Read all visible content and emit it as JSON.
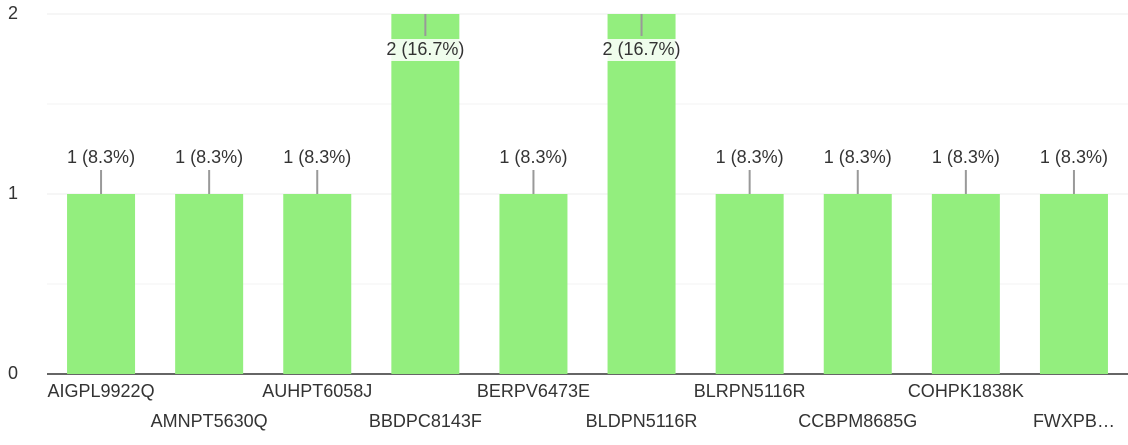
{
  "chart_data": {
    "type": "bar",
    "categories": [
      "AIGPL9922Q",
      "AMNPT5630Q",
      "AUHPT6058J",
      "BBDPC8143F",
      "BERPV6473E",
      "BLDPN5116R",
      "BLRPN5116R",
      "CCBPM8685G",
      "COHPK1838K",
      "FWXPB…"
    ],
    "values": [
      1,
      1,
      1,
      2,
      1,
      2,
      1,
      1,
      1,
      1
    ],
    "value_labels": [
      "1 (8.3%)",
      "1 (8.3%)",
      "1 (8.3%)",
      "2 (16.7%)",
      "1 (8.3%)",
      "2 (16.7%)",
      "1 (8.3%)",
      "1 (8.3%)",
      "1 (8.3%)",
      "1 (8.3%)"
    ],
    "color": "#93ee7e",
    "ylim": [
      0,
      2
    ],
    "yticks": [
      0,
      1,
      2
    ],
    "grid": true
  }
}
